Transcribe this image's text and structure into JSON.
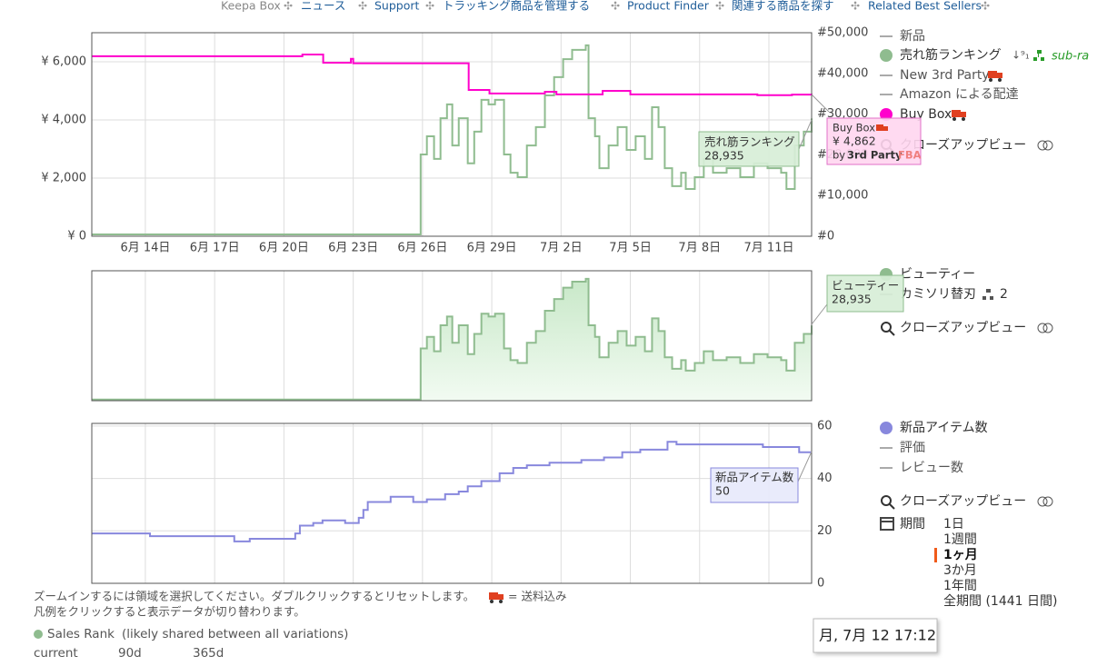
{
  "nav": [
    "Keepa Box",
    "ニュース",
    "Support",
    "トラッキング商品を管理する",
    "Product Finder",
    "関連する商品を探す",
    "Related Best Sellers"
  ],
  "chart_data": [
    {
      "type": "line",
      "xlim": [
        11.68,
        42.85
      ],
      "xticks": [
        {
          "value": 14,
          "label": "6月 14日"
        },
        {
          "value": 17,
          "label": "6月 17日"
        },
        {
          "value": 20,
          "label": "6月 20日"
        },
        {
          "value": 23,
          "label": "6月 23日"
        },
        {
          "value": 26,
          "label": "6月 26日"
        },
        {
          "value": 29,
          "label": "6月 29日"
        },
        {
          "value": 32,
          "label": "7月 2日"
        },
        {
          "value": 35,
          "label": "7月 5日"
        },
        {
          "value": 38,
          "label": "7月 8日"
        },
        {
          "value": 41,
          "label": "7月 11日"
        }
      ],
      "ylim": [
        0,
        7000
      ],
      "yticks": [
        {
          "value": 0,
          "label": "¥ 0"
        },
        {
          "value": 2000,
          "label": "¥ 2,000"
        },
        {
          "value": 4000,
          "label": "¥ 4,000"
        },
        {
          "value": 6000,
          "label": "¥ 6,000"
        }
      ],
      "y2lim": [
        0,
        50000
      ],
      "y2ticks": [
        {
          "value": 0,
          "label": "#0"
        },
        {
          "value": 10000,
          "label": "#10,000"
        },
        {
          "value": 20000,
          "label": "#20,000"
        },
        {
          "value": 30000,
          "label": "#30,000"
        },
        {
          "value": 40000,
          "label": "#40,000"
        },
        {
          "value": 50000,
          "label": "#50,000"
        }
      ],
      "grid": true,
      "series": [
        {
          "name": "売れ筋ランキング",
          "color": "#8fbc8f",
          "axis": "y2",
          "x": [
            11.68,
            25.88,
            25.92,
            26.19,
            26.5,
            26.78,
            27.06,
            27.29,
            27.57,
            27.96,
            28.24,
            28.55,
            28.86,
            29.14,
            29.53,
            29.81,
            30.12,
            30.52,
            30.91,
            31.3,
            31.7,
            32.09,
            32.48,
            33.07,
            33.19,
            33.47,
            33.66,
            34.06,
            34.45,
            34.84,
            35.23,
            35.63,
            35.94,
            36.22,
            36.49,
            36.81,
            37.2,
            37.4,
            37.79,
            38.18,
            38.58,
            39.17,
            39.76,
            40.35,
            40.94,
            41.53,
            41.76,
            42.12,
            42.51,
            42.85
          ],
          "values": [
            450,
            450,
            20100,
            24550,
            19000,
            29000,
            32400,
            22300,
            29000,
            17900,
            25700,
            33500,
            32400,
            33500,
            20100,
            15600,
            14500,
            22300,
            26800,
            34600,
            39100,
            43500,
            45800,
            46900,
            29000,
            24550,
            16700,
            22300,
            26800,
            21200,
            24550,
            19000,
            31700,
            26800,
            16700,
            12300,
            15600,
            11600,
            14500,
            19000,
            15600,
            16700,
            14500,
            17900,
            16700,
            15600,
            11600,
            22300,
            25700,
            28935
          ]
        },
        {
          "name": "Buy Box",
          "color": "#ff00cc",
          "x": [
            11.68,
            20.8,
            21.7,
            22.9,
            23.0,
            28.0,
            28.9,
            31.3,
            31.8,
            33.8,
            35.0,
            40.5,
            42.0,
            42.85
          ],
          "values": [
            6190,
            6250,
            5970,
            6100,
            5950,
            5030,
            4910,
            4970,
            4880,
            5000,
            4880,
            4850,
            4870,
            4862
          ]
        }
      ],
      "legend_inactive": [
        "新品",
        "New 3rd Party",
        "Amazon による配達"
      ],
      "badge": "sub-ra",
      "tooltip": {
        "value": "28,935",
        "price": "¥ 4,862",
        "by": "by",
        "seller": "3rd Party",
        "fba": "FBA"
      }
    },
    {
      "type": "area",
      "category": "ビューティー",
      "subcategory": "カミソリ替刃",
      "subcategory_rank": 2,
      "color": "#8fbc8f",
      "ylim": [
        0,
        50000
      ],
      "tooltip": {
        "value": "28,935"
      }
    },
    {
      "type": "line",
      "ylim": [
        0,
        61
      ],
      "yticks": [
        0,
        20,
        40,
        60
      ],
      "grid": true,
      "series": [
        {
          "name": "新品アイテム数",
          "color": "#8888dd",
          "x": [
            11.68,
            14.2,
            17.85,
            18.52,
            20.49,
            20.69,
            21.27,
            21.67,
            22.65,
            23.24,
            23.44,
            23.63,
            24.62,
            25.6,
            26.19,
            26.98,
            27.57,
            27.96,
            28.55,
            29.34,
            29.93,
            30.52,
            31.5,
            32.88,
            33.86,
            34.65,
            35.43,
            36.61,
            37.0,
            40.74,
            42.31,
            42.85
          ],
          "values": [
            19,
            18,
            16,
            17,
            19,
            22,
            23,
            24,
            23,
            25,
            28,
            31,
            33,
            31,
            32,
            34,
            35,
            37,
            39,
            42,
            44,
            45,
            46,
            47,
            48,
            50,
            51,
            54,
            53,
            52,
            50,
            50
          ]
        }
      ],
      "legend_inactive": [
        "評価",
        "レビュー数"
      ]
    }
  ],
  "ui": {
    "closeup": "クローズアップビュー"
  },
  "range": {
    "label": "期間",
    "options": [
      "1日",
      "1週間",
      "1ヶ月",
      "3か月",
      "1年間",
      "全期間 (1441 日間)"
    ],
    "selected": 2
  },
  "footer": {
    "zoom_hint": "ズームインするには領域を選択してください。ダブルクリックするとリセットします。",
    "shipping_note": "= 送料込み",
    "legend_hint": "凡例をクリックすると表示データが切り替わります。",
    "sales_rank": "Sales Rank",
    "sales_rank_note": "(likely shared between all variations)",
    "columns": [
      "current",
      "90d",
      "365d"
    ]
  },
  "cursor_time": "月, 7月 12 17:12"
}
